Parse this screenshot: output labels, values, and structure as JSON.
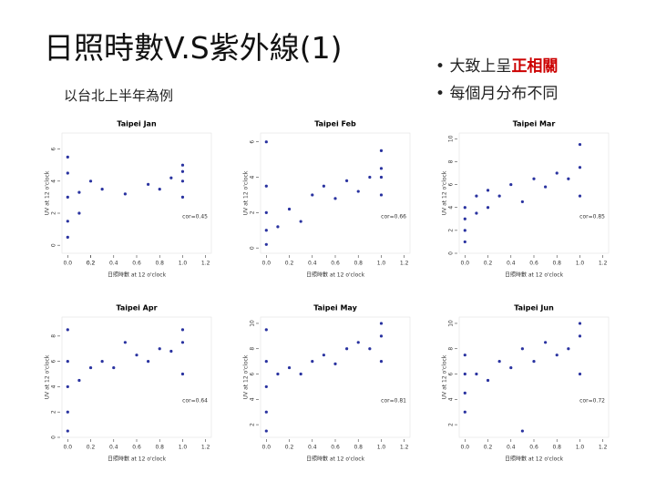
{
  "slide": {
    "title": "日照時數V.S紫外線(1)",
    "subtitle": "以台北上半年為例",
    "bullets": [
      {
        "parts": [
          "大致上呈",
          "正相關"
        ]
      },
      {
        "parts": [
          "每個月分布不同"
        ]
      }
    ]
  },
  "chart_data": [
    {
      "type": "scatter",
      "title": "Taipei Jan",
      "x_label": "日照時數 at 12 o'clock",
      "y_label": "UV at 12 o'clock",
      "annotation": "cor=0.45",
      "color": "#2a33a0",
      "x": [
        0,
        0,
        0,
        0,
        0,
        0.1,
        0.1,
        0.2,
        0.3,
        0.5,
        0.7,
        0.8,
        0.9,
        1,
        1,
        1,
        1
      ],
      "values": [
        0.5,
        1.5,
        3,
        4.5,
        5.5,
        2,
        3.3,
        4,
        3.5,
        3.2,
        3.8,
        3.5,
        4.2,
        3,
        4,
        4.6,
        5
      ],
      "xlim": [
        -0.05,
        1.25
      ],
      "ylim": [
        -0.5,
        7
      ],
      "xticks": [
        {
          "value": 0,
          "label": "0.0"
        },
        0.2,
        0.4,
        0.6,
        0.8,
        {
          "value": 1,
          "label": "1.0"
        },
        0.2,
        {
          "value": 1.2,
          "label": "1.2"
        }
      ],
      "yticks": [
        0,
        2,
        4,
        6
      ]
    },
    {
      "type": "scatter",
      "title": "Taipei Feb",
      "x_label": "日照時數 at 12 o'clock",
      "y_label": "UV at 12 o'clock",
      "annotation": "cor=0.66",
      "color": "#2a33a0",
      "x": [
        0,
        0,
        0,
        0,
        0,
        0.1,
        0.2,
        0.3,
        0.4,
        0.5,
        0.6,
        0.7,
        0.8,
        0.9,
        1,
        1,
        1,
        1
      ],
      "values": [
        0.2,
        1,
        2,
        3.5,
        6,
        1.2,
        2.2,
        1.5,
        3,
        3.5,
        2.8,
        3.8,
        3.2,
        4,
        3,
        4,
        4.5,
        5.5
      ],
      "xlim": [
        -0.05,
        1.25
      ],
      "ylim": [
        -0.3,
        6.5
      ],
      "xticks": [
        {
          "value": 0,
          "label": "0.0"
        },
        0.2,
        0.4,
        0.6,
        0.8,
        {
          "value": 1,
          "label": "1.0"
        },
        {
          "value": 1.2,
          "label": "1.2"
        }
      ],
      "yticks": [
        0,
        2,
        4,
        6
      ]
    },
    {
      "type": "scatter",
      "title": "Taipei Mar",
      "x_label": "日照時數 at 12 o'clock",
      "y_label": "UV at 12 o'clock",
      "annotation": "cor=0.85",
      "color": "#2a33a0",
      "x": [
        0,
        0,
        0,
        0,
        0.1,
        0.1,
        0.2,
        0.2,
        0.3,
        0.4,
        0.5,
        0.6,
        0.7,
        0.8,
        0.9,
        1,
        1,
        1
      ],
      "values": [
        1,
        2,
        3,
        4,
        3.5,
        5,
        4,
        5.5,
        5,
        6,
        4.5,
        6.5,
        5.8,
        7,
        6.5,
        5,
        7.5,
        9.5
      ],
      "xlim": [
        -0.05,
        1.25
      ],
      "ylim": [
        0,
        10.5
      ],
      "xticks": [
        {
          "value": 0,
          "label": "0.0"
        },
        0.2,
        0.4,
        0.6,
        0.8,
        {
          "value": 1,
          "label": "1.0"
        },
        {
          "value": 1.2,
          "label": "1.2"
        }
      ],
      "yticks": [
        0,
        2,
        4,
        6,
        8,
        10
      ]
    },
    {
      "type": "scatter",
      "title": "Taipei Apr",
      "x_label": "日照時數 at 12 o'clock",
      "y_label": "UV at 12 o'clock",
      "annotation": "cor=0.64",
      "color": "#2a33a0",
      "x": [
        0,
        0,
        0,
        0,
        0,
        0.1,
        0.2,
        0.3,
        0.4,
        0.5,
        0.6,
        0.7,
        0.8,
        0.9,
        1,
        1,
        1
      ],
      "values": [
        0.5,
        2,
        4,
        6,
        8.5,
        4.5,
        5.5,
        6,
        5.5,
        7.5,
        6.5,
        6,
        7,
        6.8,
        5,
        7.5,
        8.5
      ],
      "xlim": [
        -0.05,
        1.25
      ],
      "ylim": [
        0,
        9.5
      ],
      "xticks": [
        {
          "value": 0,
          "label": "0.0"
        },
        0.2,
        0.4,
        0.6,
        0.8,
        {
          "value": 1,
          "label": "1.0"
        },
        {
          "value": 1.2,
          "label": "1.2"
        }
      ],
      "yticks": [
        0,
        2,
        4,
        6,
        8
      ]
    },
    {
      "type": "scatter",
      "title": "Taipei May",
      "x_label": "日照時數 at 12 o'clock",
      "y_label": "UV at 12 o'clock",
      "annotation": "cor=0.81",
      "color": "#2a33a0",
      "x": [
        0,
        0,
        0,
        0,
        0,
        0.1,
        0.2,
        0.3,
        0.4,
        0.5,
        0.6,
        0.7,
        0.8,
        0.9,
        1,
        1,
        1
      ],
      "values": [
        1.5,
        3,
        5,
        7,
        9.5,
        6,
        6.5,
        6,
        7,
        7.5,
        6.8,
        8,
        8.5,
        8,
        7,
        9,
        10
      ],
      "xlim": [
        -0.05,
        1.25
      ],
      "ylim": [
        1,
        10.5
      ],
      "xticks": [
        {
          "value": 0,
          "label": "0.0"
        },
        0.2,
        0.4,
        0.6,
        0.8,
        {
          "value": 1,
          "label": "1.0"
        },
        {
          "value": 1.2,
          "label": "1.2"
        }
      ],
      "yticks": [
        2,
        4,
        6,
        8,
        10
      ]
    },
    {
      "type": "scatter",
      "title": "Taipei Jun",
      "x_label": "日照時數 at 12 o'clock",
      "y_label": "UV at 12 o'clock",
      "annotation": "cor=0.72",
      "color": "#2a33a0",
      "x": [
        0,
        0,
        0,
        0,
        0.1,
        0.2,
        0.3,
        0.4,
        0.5,
        0.5,
        0.6,
        0.7,
        0.8,
        0.9,
        1,
        1,
        1
      ],
      "values": [
        3,
        4.5,
        6,
        7.5,
        6,
        5.5,
        7,
        6.5,
        1.5,
        8,
        7,
        8.5,
        7.5,
        8,
        6,
        9,
        10
      ],
      "xlim": [
        -0.05,
        1.25
      ],
      "ylim": [
        1,
        10.5
      ],
      "xticks": [
        {
          "value": 0,
          "label": "0.0"
        },
        0.2,
        0.4,
        0.6,
        0.8,
        {
          "value": 1,
          "label": "1.0"
        },
        {
          "value": 1.2,
          "label": "1.2"
        }
      ],
      "yticks": [
        2,
        4,
        6,
        8,
        10
      ]
    }
  ]
}
